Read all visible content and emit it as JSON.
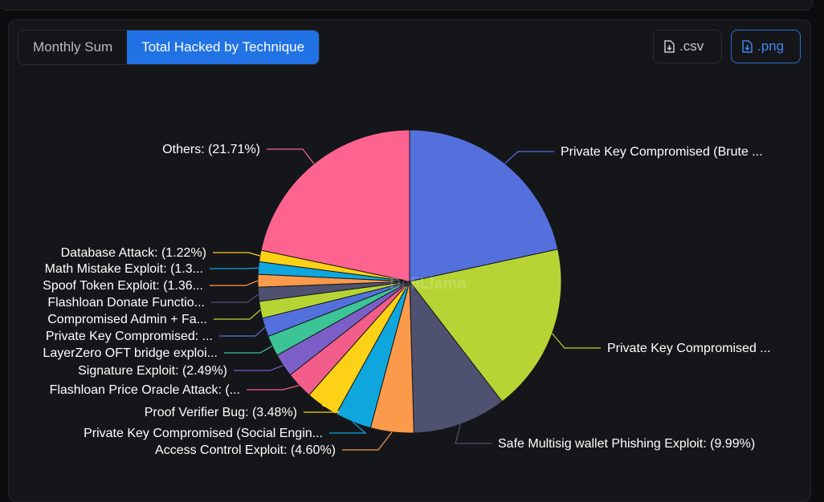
{
  "tabs": [
    {
      "label": "Monthly Sum",
      "active": false
    },
    {
      "label": "Total Hacked by Technique",
      "active": true
    }
  ],
  "buttons": {
    "csv": ".csv",
    "png": ".png"
  },
  "watermark": "DefiLlama",
  "chart_data": {
    "type": "pie",
    "title": "Total Hacked by Technique",
    "slices": [
      {
        "name": "Private Key Compromised (Brute ...",
        "value": 21.6,
        "color": "#5470dc"
      },
      {
        "name": "Private Key Compromised ...",
        "value": 18.0,
        "color": "#b6d535"
      },
      {
        "name": "Safe Multisig wallet Phishing Exploit: (9.99%)",
        "value": 9.99,
        "color": "#4e5270"
      },
      {
        "name": "Access Control Exploit: (4.60%)",
        "value": 4.6,
        "color": "#fb9a4b"
      },
      {
        "name": "Private Key Compromised (Social Engin...",
        "value": 3.9,
        "color": "#0fa6dd"
      },
      {
        "name": "Proof Verifier Bug: (3.48%)",
        "value": 3.48,
        "color": "#fdd116"
      },
      {
        "name": "Flashloan Price Oracle Attack: (...",
        "value": 2.9,
        "color": "#f35d8a"
      },
      {
        "name": "Signature Exploit: (2.49%)",
        "value": 2.49,
        "color": "#7c5fc6"
      },
      {
        "name": "LayerZero OFT bridge exploi...",
        "value": 2.2,
        "color": "#3cc497"
      },
      {
        "name": "Private Key Compromised: ...",
        "value": 2.0,
        "color": "#5470dc"
      },
      {
        "name": "Compromised Admin + Fa...",
        "value": 1.8,
        "color": "#b6d535"
      },
      {
        "name": "Flashloan Donate Functio...",
        "value": 1.5,
        "color": "#4e5270"
      },
      {
        "name": "Spoof Token Exploit: (1.36...",
        "value": 1.36,
        "color": "#fb9a4b"
      },
      {
        "name": "Math Mistake Exploit: (1.3...",
        "value": 1.33,
        "color": "#0fa6dd"
      },
      {
        "name": "Database Attack: (1.22%)",
        "value": 1.22,
        "color": "#fdd116"
      },
      {
        "name": "Others: (21.71%)",
        "value": 21.71,
        "color": "#ff6490"
      }
    ]
  }
}
